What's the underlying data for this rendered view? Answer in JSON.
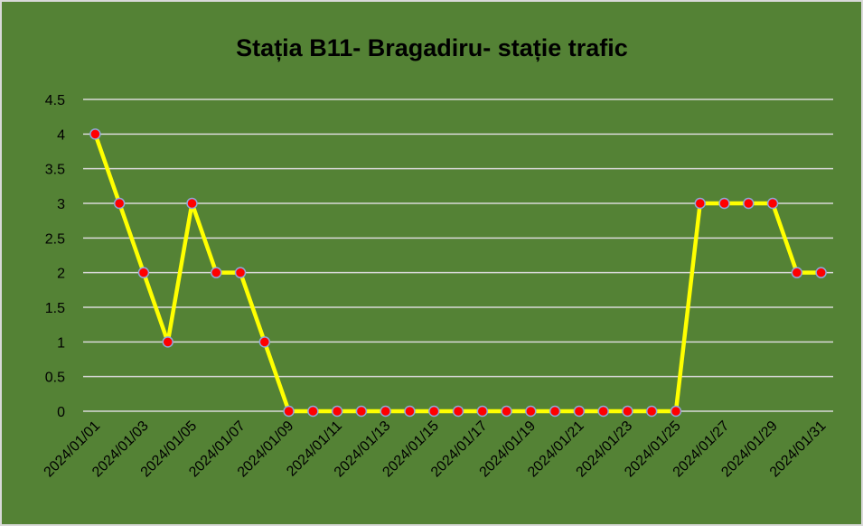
{
  "chart_data": {
    "type": "line",
    "title": "Stația B11- Bragadiru- stație trafic",
    "categories": [
      "2024/01/01",
      null,
      "2024/01/03",
      null,
      "2024/01/05",
      null,
      "2024/01/07",
      null,
      "2024/01/09",
      null,
      "2024/01/11",
      null,
      "2024/01/13",
      null,
      "2024/01/15",
      null,
      "2024/01/17",
      null,
      "2024/01/19",
      null,
      "2024/01/21",
      null,
      "2024/01/23",
      null,
      "2024/01/25",
      null,
      "2024/01/27",
      null,
      "2024/01/29",
      null,
      "2024/01/31"
    ],
    "series": [
      {
        "color": "#ffff00",
        "marker_color": "#ff0000",
        "values": [
          4,
          3,
          2,
          1,
          3,
          2,
          2,
          1,
          0,
          0,
          0,
          0,
          0,
          0,
          0,
          0,
          0,
          0,
          0,
          0,
          0,
          0,
          0,
          0,
          0,
          3,
          3,
          3,
          3,
          2,
          2
        ]
      }
    ],
    "ylim": [
      0,
      4.5
    ],
    "yticks": [
      0,
      0.5,
      1,
      1.5,
      2,
      2.5,
      3,
      3.5,
      4,
      4.5
    ],
    "grid": true,
    "background": "#548235"
  }
}
